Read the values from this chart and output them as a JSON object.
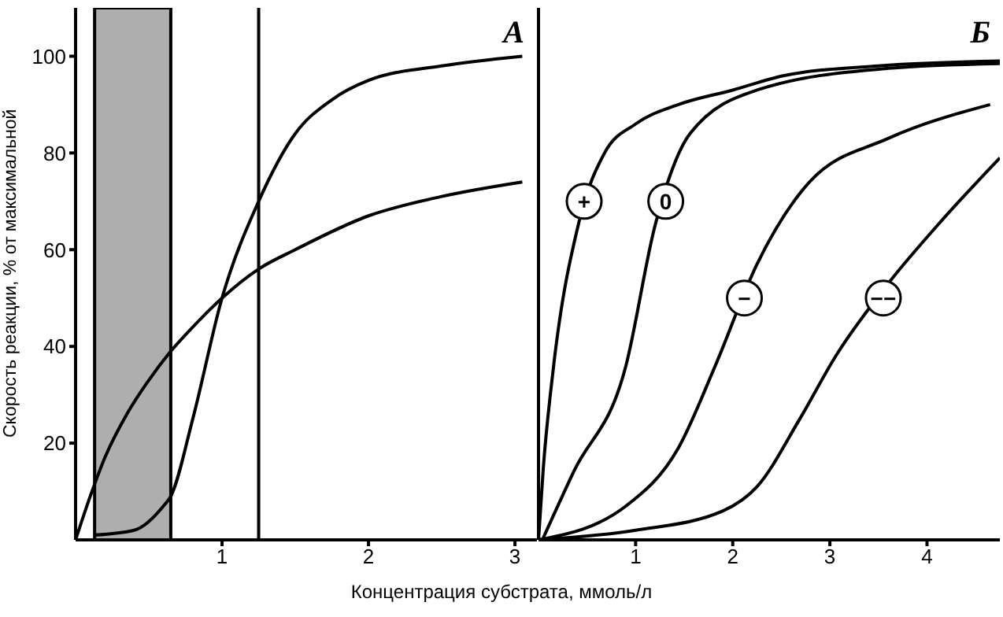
{
  "chart_data": [
    {
      "type": "line",
      "title": "A",
      "ylabel": "Скорость реакции, % от максимальной",
      "xlabel": "Концентрация субстрата, ммоль/л",
      "xlim": [
        0,
        3.15
      ],
      "xticks": [
        1,
        2,
        3
      ],
      "ylim": [
        0,
        110
      ],
      "yticks": [
        20,
        40,
        60,
        80,
        100
      ],
      "grid": false,
      "legend": false,
      "marker": "none",
      "line_style": "solid",
      "series": [
        {
          "color": "#000000",
          "x": [
            0,
            0.1,
            0.2,
            0.35,
            0.5,
            0.65,
            0.8,
            1,
            1.25,
            1.5,
            2,
            2.5,
            3.05
          ],
          "values": [
            0,
            9,
            17,
            26,
            33,
            39,
            44,
            50,
            56,
            60,
            67,
            71,
            74
          ]
        },
        {
          "color": "#000000",
          "x": [
            0.13,
            0.4,
            0.6,
            0.65,
            0.8,
            1,
            1.25,
            1.5,
            1.75,
            2,
            2.5,
            3.05
          ],
          "values": [
            1,
            2,
            7,
            9,
            25,
            50,
            70,
            84,
            91,
            95,
            98,
            100
          ]
        }
      ],
      "bands": [
        {
          "axis": "x",
          "from": 0.13,
          "to": 0.65,
          "color": "#8c8c8c"
        }
      ],
      "ref_lines": [
        {
          "axis": "x",
          "value": 1.25
        }
      ]
    },
    {
      "type": "line",
      "title": "Б",
      "xlim": [
        0,
        4.75
      ],
      "xticks": [
        1,
        2,
        3,
        4
      ],
      "ylim": [
        0,
        110
      ],
      "tick_labels": "x",
      "grid": false,
      "legend": false,
      "marker": "none",
      "line_style": "solid",
      "series": [
        {
          "color": "#000000",
          "x": [
            0,
            0.05,
            0.15,
            0.42,
            0.68,
            1.0,
            1.44,
            2.0,
            2.53,
            3.5,
            4.75
          ],
          "values": [
            0,
            15,
            35,
            66,
            80,
            86,
            90,
            93,
            96,
            98,
            99
          ]
        },
        {
          "color": "#000000",
          "x": [
            0.04,
            0.36,
            0.9,
            1.2,
            1.56,
            2.25,
            3.6,
            4.75
          ],
          "values": [
            0,
            14,
            36,
            65,
            84,
            93,
            97.5,
            98.5
          ]
        },
        {
          "color": "#000000",
          "x": [
            0,
            0.9,
            1.44,
            1.82,
            2.25,
            2.79,
            3.6,
            4.65
          ],
          "values": [
            0,
            7,
            19,
            36,
            57,
            74,
            83,
            90
          ]
        },
        {
          "color": "#000000",
          "x": [
            0,
            1,
            1.9,
            2.25,
            2.69,
            3.06,
            3.6,
            4.15,
            4.75
          ],
          "values": [
            0,
            2,
            6,
            11,
            25,
            38,
            53,
            66,
            79
          ]
        }
      ],
      "annotations": [
        {
          "text": "+",
          "x": 0.47,
          "y": 70
        },
        {
          "text": "0",
          "x": 1.31,
          "y": 70
        },
        {
          "text": "−",
          "x": 2.12,
          "y": 50
        },
        {
          "text": "−−",
          "x": 3.55,
          "y": 50
        }
      ]
    }
  ]
}
